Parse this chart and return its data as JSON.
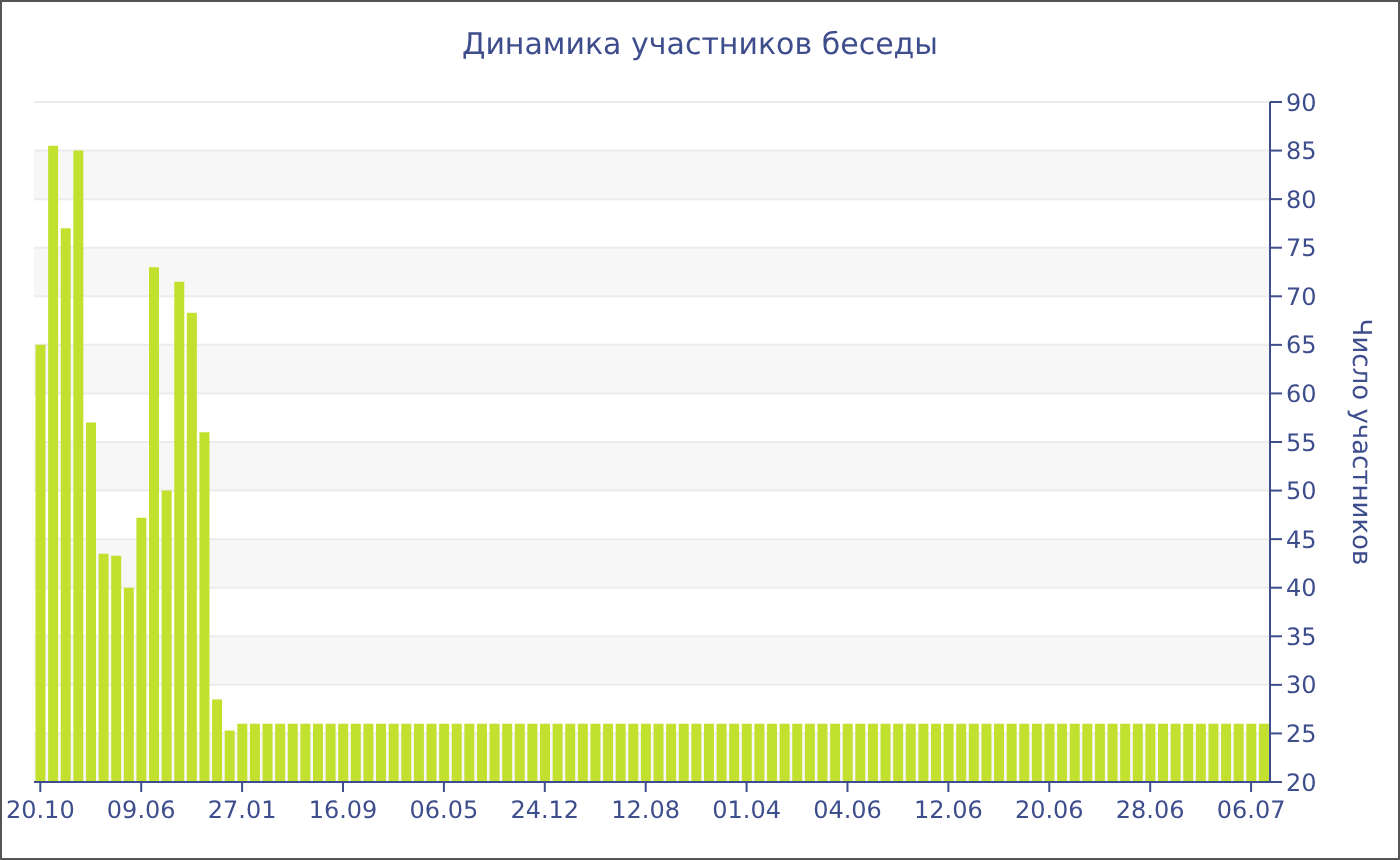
{
  "chart_data": {
    "type": "bar",
    "title": "Динамика участников беседы",
    "ylabel": "Число участников",
    "color": "#c2e02e",
    "grid": "y",
    "ylim": [
      20,
      90
    ],
    "yticks": [
      20,
      25,
      30,
      35,
      40,
      45,
      50,
      55,
      60,
      65,
      70,
      75,
      80,
      85,
      90
    ],
    "categories": [
      "20.10",
      null,
      null,
      null,
      null,
      null,
      null,
      null,
      "09.06",
      null,
      null,
      null,
      null,
      null,
      null,
      null,
      "27.01",
      null,
      null,
      null,
      null,
      null,
      null,
      null,
      "16.09",
      null,
      null,
      null,
      null,
      null,
      null,
      null,
      "06.05",
      null,
      null,
      null,
      null,
      null,
      null,
      null,
      "24.12",
      null,
      null,
      null,
      null,
      null,
      null,
      null,
      "12.08",
      null,
      null,
      null,
      null,
      null,
      null,
      null,
      "01.04",
      null,
      null,
      null,
      null,
      null,
      null,
      null,
      "04.06",
      null,
      null,
      null,
      null,
      null,
      null,
      null,
      "12.06",
      null,
      null,
      null,
      null,
      null,
      null,
      null,
      "20.06",
      null,
      null,
      null,
      null,
      null,
      null,
      null,
      "28.06",
      null,
      null,
      null,
      null,
      null,
      null,
      null,
      "06.07",
      null
    ],
    "values": [
      65,
      85.5,
      77,
      85,
      57,
      43.5,
      43.3,
      40,
      47.2,
      73,
      50,
      71.5,
      68.3,
      56,
      28.5,
      25.3,
      26,
      26,
      26,
      26,
      26,
      26,
      26,
      26,
      26,
      26,
      26,
      26,
      26,
      26,
      26,
      26,
      26,
      26,
      26,
      26,
      26,
      26,
      26,
      26,
      26,
      26,
      26,
      26,
      26,
      26,
      26,
      26,
      26,
      26,
      26,
      26,
      26,
      26,
      26,
      26,
      26,
      26,
      26,
      26,
      26,
      26,
      26,
      26,
      26,
      26,
      26,
      26,
      26,
      26,
      26,
      26,
      26,
      26,
      26,
      26,
      26,
      26,
      26,
      26,
      26,
      26,
      26,
      26,
      26,
      26,
      26,
      26,
      26,
      26,
      26,
      26,
      26,
      26,
      26,
      26,
      26,
      26
    ]
  }
}
